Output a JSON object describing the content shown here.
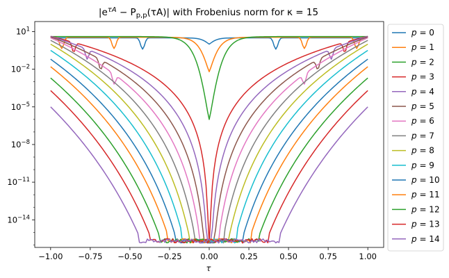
{
  "chart_data": {
    "type": "line",
    "title": "|e^{τA} − P_{p,p}(τA)| with Frobenius norm for κ = 15",
    "title_parts": {
      "open": "|e",
      "exp": "τA",
      "mid": " − P",
      "sub": "p,p",
      "close": "(τA)| with Frobenius norm for κ = 15"
    },
    "xlabel": "τ",
    "ylabel": "",
    "x_scale": "linear",
    "y_scale": "log",
    "xlim": [
      -1.1,
      1.1
    ],
    "ylim_log10": [
      -16.2,
      1.8
    ],
    "x_ticks": [
      -1.0,
      -0.75,
      -0.5,
      -0.25,
      0.0,
      0.25,
      0.5,
      0.75,
      1.0
    ],
    "x_tick_labels": [
      "−1.00",
      "−0.75",
      "−0.50",
      "−0.25",
      "0.00",
      "0.25",
      "0.50",
      "0.75",
      "1.00"
    ],
    "y_ticks_log10": [
      1,
      -2,
      -5,
      -8,
      -11,
      -14
    ],
    "y_tick_labels": [
      {
        "base": "10",
        "exp": "1"
      },
      {
        "base": "10",
        "exp": "−2"
      },
      {
        "base": "10",
        "exp": "−5"
      },
      {
        "base": "10",
        "exp": "−8"
      },
      {
        "base": "10",
        "exp": "−11"
      },
      {
        "base": "10",
        "exp": "−14"
      }
    ],
    "grid": false,
    "legend_position": "right, outside plot",
    "floor_log10": -15.7,
    "series": [
      {
        "name": "p = 0",
        "legend_var": "p",
        "legend_val": "0",
        "color": "#1f77b4",
        "edge_log10": 0.5,
        "center_log10": 0.0
      },
      {
        "name": "p = 1",
        "legend_var": "p",
        "legend_val": "1",
        "color": "#ff7f0e",
        "edge_log10": 0.55,
        "center_log10": -2.2
      },
      {
        "name": "p = 2",
        "legend_var": "p",
        "legend_val": "2",
        "color": "#2ca02c",
        "edge_log10": 0.6,
        "center_log10": -6.0
      },
      {
        "name": "p = 3",
        "legend_var": "p",
        "legend_val": "3",
        "color": "#d62728",
        "edge_log10": 0.62,
        "center_log10": -15.7
      },
      {
        "name": "p = 4",
        "legend_var": "p",
        "legend_val": "4",
        "color": "#9467bd",
        "edge_log10": 0.62,
        "center_log10": -15.7
      },
      {
        "name": "p = 5",
        "legend_var": "p",
        "legend_val": "5",
        "color": "#8c564b",
        "edge_log10": 0.58,
        "center_log10": -15.7
      },
      {
        "name": "p = 6",
        "legend_var": "p",
        "legend_val": "6",
        "color": "#e377c2",
        "edge_log10": 0.5,
        "center_log10": -15.7
      },
      {
        "name": "p = 7",
        "legend_var": "p",
        "legend_val": "7",
        "color": "#7f7f7f",
        "edge_log10": 0.3,
        "center_log10": -15.7
      },
      {
        "name": "p = 8",
        "legend_var": "p",
        "legend_val": "8",
        "color": "#bcbd22",
        "edge_log10": 0.0,
        "center_log10": -15.7
      },
      {
        "name": "p = 9",
        "legend_var": "p",
        "legend_val": "9",
        "color": "#17becf",
        "edge_log10": -0.5,
        "center_log10": -15.7
      },
      {
        "name": "p = 10",
        "legend_var": "p",
        "legend_val": "10",
        "color": "#1f77b4",
        "edge_log10": -1.2,
        "center_log10": -15.7
      },
      {
        "name": "p = 11",
        "legend_var": "p",
        "legend_val": "11",
        "color": "#ff7f0e",
        "edge_log10": -1.8,
        "center_log10": -15.7
      },
      {
        "name": "p = 12",
        "legend_var": "p",
        "legend_val": "12",
        "color": "#2ca02c",
        "edge_log10": -2.7,
        "center_log10": -15.7
      },
      {
        "name": "p = 13",
        "legend_var": "p",
        "legend_val": "13",
        "color": "#d62728",
        "edge_log10": -3.7,
        "center_log10": -15.7
      },
      {
        "name": "p = 14",
        "legend_var": "p",
        "legend_val": "14",
        "color": "#9467bd",
        "edge_log10": -5.0,
        "center_log10": -15.7
      }
    ]
  }
}
